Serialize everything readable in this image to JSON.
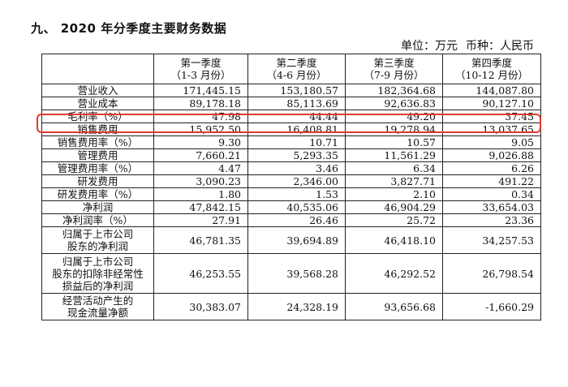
{
  "title": "九、 2020 年分季度主要财务数据",
  "unit_line": {
    "unit": "单位：万元",
    "currency": "币种：人民币"
  },
  "table": {
    "headers": [
      {
        "line1": "",
        "line2": ""
      },
      {
        "line1": "第一季度",
        "line2": "（1-3 月份）"
      },
      {
        "line1": "第二季度",
        "line2": "（4-6 月份）"
      },
      {
        "line1": "第三季度",
        "line2": "（7-9 月份）"
      },
      {
        "line1": "第四季度",
        "line2": "（10-12 月份）"
      }
    ],
    "rows": [
      {
        "label": [
          "营业收入"
        ],
        "values": [
          "171,445.15",
          "153,180.57",
          "182,364.68",
          "144,087.80"
        ],
        "lines": 1
      },
      {
        "label": [
          "营业成本"
        ],
        "values": [
          "89,178.18",
          "85,113.69",
          "92,636.83",
          "90,127.10"
        ],
        "lines": 1
      },
      {
        "label": [
          "毛利率（%）"
        ],
        "values": [
          "47.98",
          "44.44",
          "49.20",
          "37.45"
        ],
        "lines": 1
      },
      {
        "label": [
          "销售费用"
        ],
        "values": [
          "15,952.50",
          "16,408.81",
          "19,278.94",
          "13,037.65"
        ],
        "lines": 1
      },
      {
        "label": [
          "销售费用率（%）"
        ],
        "values": [
          "9.30",
          "10.71",
          "10.57",
          "9.05"
        ],
        "lines": 1
      },
      {
        "label": [
          "管理费用"
        ],
        "values": [
          "7,660.21",
          "5,293.35",
          "11,561.29",
          "9,026.88"
        ],
        "lines": 1
      },
      {
        "label": [
          "管理费用率（%）"
        ],
        "values": [
          "4.47",
          "3.46",
          "6.34",
          "6.26"
        ],
        "lines": 1
      },
      {
        "label": [
          "研发费用"
        ],
        "values": [
          "3,090.23",
          "2,346.00",
          "3,827.71",
          "491.22"
        ],
        "lines": 1
      },
      {
        "label": [
          "研发费用率（%）"
        ],
        "values": [
          "1.80",
          "1.53",
          "2.10",
          "0.34"
        ],
        "lines": 1
      },
      {
        "label": [
          "净利润"
        ],
        "values": [
          "47,842.15",
          "40,535.06",
          "46,904.29",
          "33,654.03"
        ],
        "lines": 1
      },
      {
        "label": [
          "净利润率（%）"
        ],
        "values": [
          "27.91",
          "26.46",
          "25.72",
          "23.36"
        ],
        "lines": 1
      },
      {
        "label": [
          "归属于上市公司",
          "股东的净利润"
        ],
        "values": [
          "46,781.35",
          "39,694.89",
          "46,418.10",
          "34,257.53"
        ],
        "lines": 2
      },
      {
        "label": [
          "归属于上市公司",
          "股东的扣除非经常性",
          "损益后的净利润"
        ],
        "values": [
          "46,253.55",
          "39,568.28",
          "46,292.52",
          "26,798.54"
        ],
        "lines": 3
      },
      {
        "label": [
          "经营活动产生的",
          "现金流量净额"
        ],
        "values": [
          "30,383.07",
          "24,328.19",
          "93,656.68",
          "-1,660.29"
        ],
        "lines": 2
      }
    ]
  },
  "highlight_color": "#e03a2c"
}
